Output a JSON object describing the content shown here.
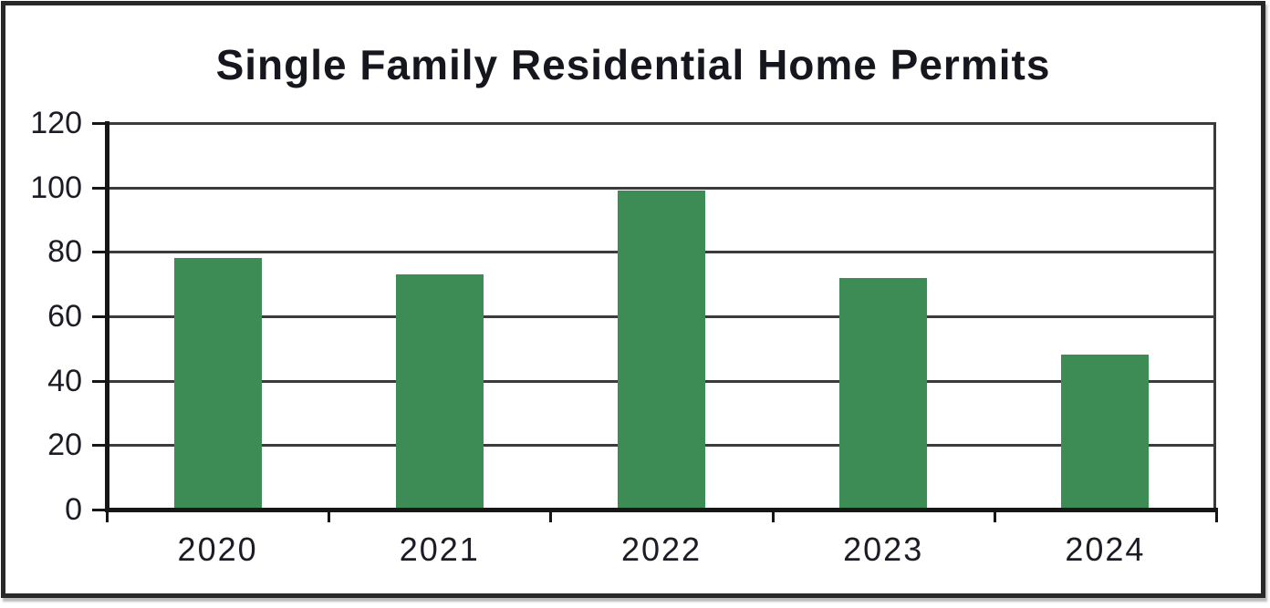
{
  "chart_data": {
    "type": "bar",
    "title": "Single Family Residential Home Permits",
    "categories": [
      "2020",
      "2021",
      "2022",
      "2023",
      "2024"
    ],
    "values": [
      78,
      73,
      99,
      72,
      48
    ],
    "xlabel": "",
    "ylabel": "",
    "ylim": [
      0,
      120
    ],
    "yticks": [
      0,
      20,
      40,
      60,
      80,
      100,
      120
    ],
    "grid": "horizontal",
    "legend": "none",
    "bar_color": "#3d8c55",
    "gridline_color": "#3b3b3b",
    "axis_color": "#161616",
    "text_color": "#1c1c26",
    "title_color": "#16161f",
    "frame_border_color": "#282828"
  }
}
